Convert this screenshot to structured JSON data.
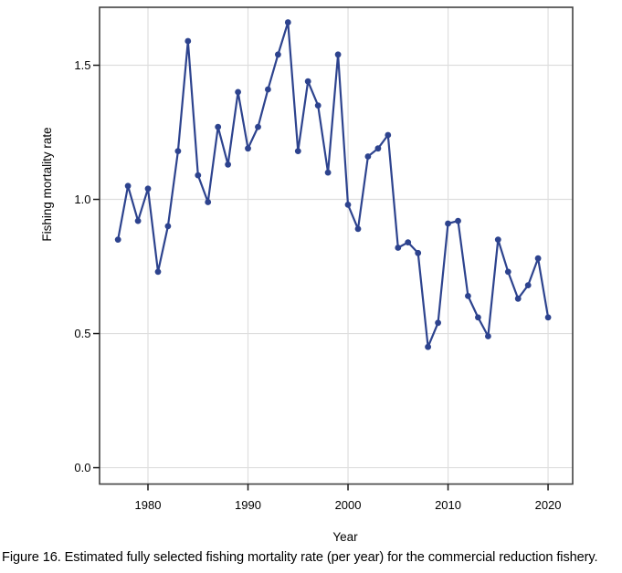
{
  "figure": {
    "caption": "Figure 16. Estimated fully selected fishing mortality rate (per year) for the commercial reduction fishery."
  },
  "chart_data": {
    "type": "line",
    "title": "",
    "xlabel": "Year",
    "ylabel": "Fishing mortality rate",
    "x": [
      1977,
      1978,
      1979,
      1980,
      1981,
      1982,
      1983,
      1984,
      1985,
      1986,
      1987,
      1988,
      1989,
      1990,
      1991,
      1992,
      1993,
      1994,
      1995,
      1996,
      1997,
      1998,
      1999,
      2000,
      2001,
      2002,
      2003,
      2004,
      2005,
      2006,
      2007,
      2008,
      2009,
      2010,
      2011,
      2012,
      2013,
      2014,
      2015,
      2016,
      2017,
      2018,
      2019,
      2020
    ],
    "values": [
      0.85,
      1.05,
      0.92,
      1.04,
      0.73,
      0.9,
      1.18,
      1.59,
      1.09,
      0.99,
      1.27,
      1.13,
      1.4,
      1.19,
      1.27,
      1.41,
      1.54,
      1.66,
      1.18,
      1.44,
      1.35,
      1.1,
      1.54,
      0.98,
      0.89,
      1.16,
      1.19,
      1.24,
      0.82,
      0.84,
      0.8,
      0.45,
      0.54,
      0.91,
      0.92,
      0.64,
      0.56,
      0.49,
      0.85,
      0.73,
      0.63,
      0.68,
      0.78,
      0.56
    ],
    "xlim": [
      1975.16,
      2022.46
    ],
    "ylim": [
      -0.061,
      1.716
    ],
    "xticks": [
      1980,
      1990,
      2000,
      2010,
      2020
    ],
    "xtick_labels": [
      "1980",
      "1990",
      "2000",
      "2010",
      "2020"
    ],
    "yticks": [
      0,
      0.5,
      1.0,
      1.5
    ],
    "ytick_labels": [
      "0.0",
      "0.5",
      "1.0",
      "1.5"
    ],
    "grid": true,
    "legend": "none",
    "line_color": "#2d438e",
    "marker": "filled-circle",
    "grid_color": "#dedede",
    "border_color": "#414141",
    "tick_color": "#1a1a1a",
    "label_color": "#000000",
    "background": "#ffffff"
  }
}
